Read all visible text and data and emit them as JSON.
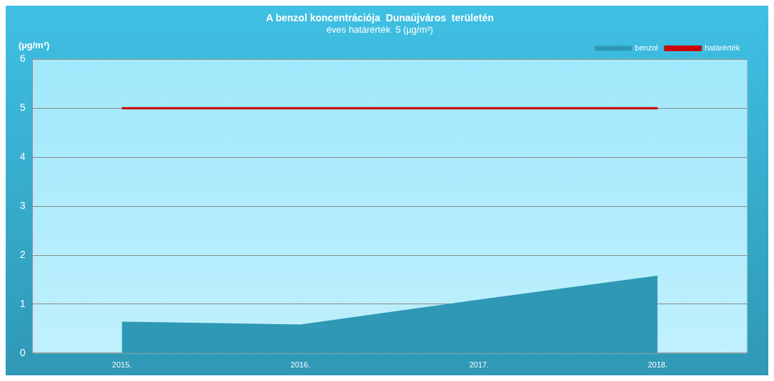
{
  "chart_data": {
    "type": "area",
    "title": "A benzol koncentrációja  Dunaújváros  területén",
    "subtitle": "éves határérték  5 (µg/m³)",
    "ylabel": "(µg/m³)",
    "categories": [
      "2015.",
      "2016.",
      "2017.",
      "2018."
    ],
    "series": [
      {
        "name": "benzol",
        "color": "#2f98b5",
        "values": [
          0.63,
          0.57,
          1.08,
          1.57
        ]
      }
    ],
    "ref_lines": [
      {
        "axis": "y",
        "value": 5,
        "label": "határérték",
        "color": "#cc0000"
      }
    ],
    "ylim": [
      0,
      6
    ],
    "yticks": [
      0,
      1,
      2,
      3,
      4,
      5,
      6
    ],
    "grid": "y",
    "legend": "top right"
  }
}
